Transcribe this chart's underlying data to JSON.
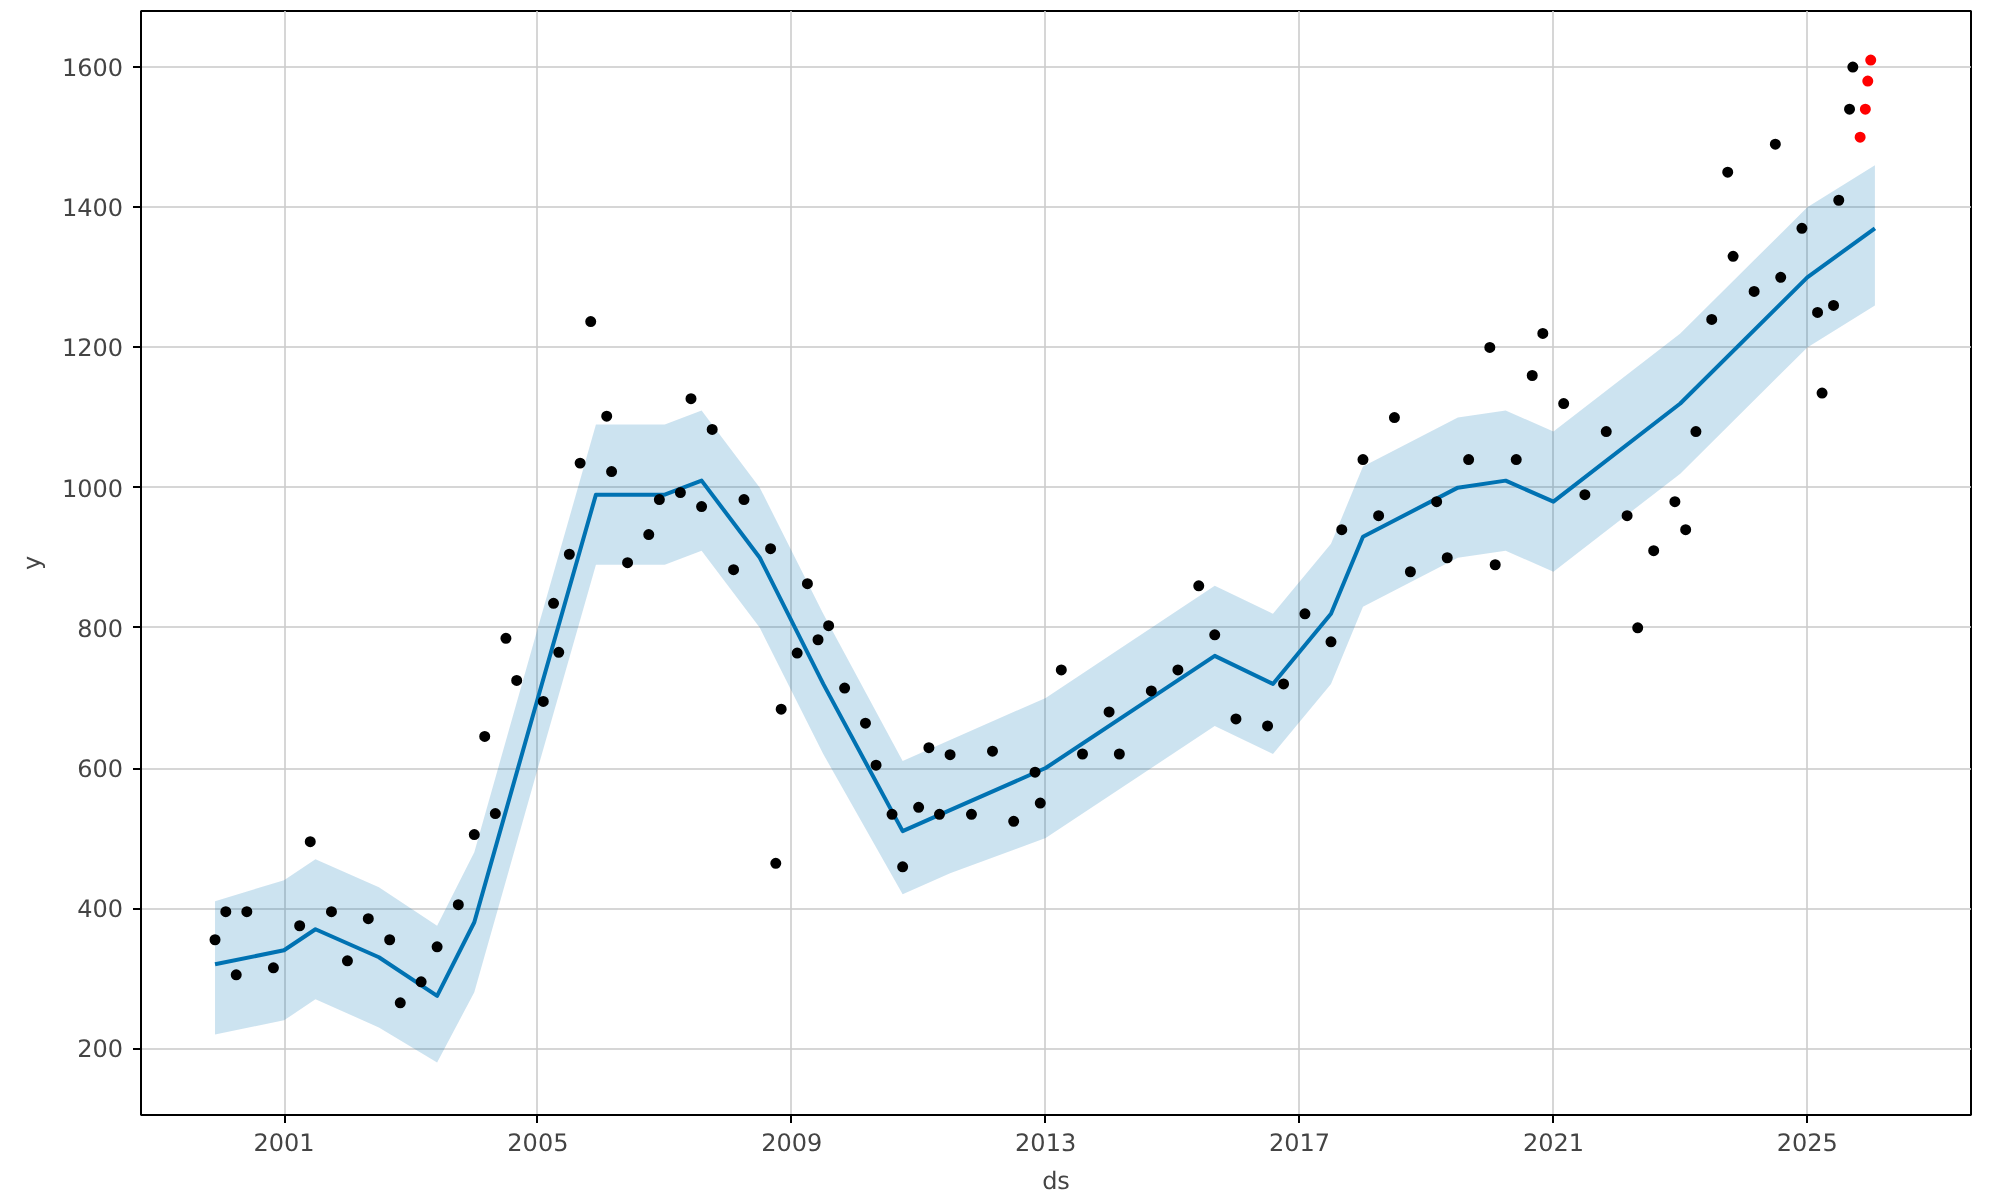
{
  "chart_data": {
    "type": "scatter",
    "xlabel": "ds",
    "ylabel": "y",
    "grid": true,
    "marker": "circle",
    "xlim": [
      "1998-10",
      "2027-08"
    ],
    "ylim": [
      105,
      1680
    ],
    "xticks": [
      "2001",
      "2005",
      "2009",
      "2013",
      "2017",
      "2021",
      "2025"
    ],
    "yticks": [
      200,
      400,
      600,
      800,
      1000,
      1200,
      1400,
      1600
    ],
    "series": [
      {
        "type": "line",
        "color": "#0072b2",
        "marker": "none",
        "line_style": "solid",
        "x": [
          "1999-12",
          "2001-01",
          "2001-07",
          "2002-07",
          "2003-06",
          "2004-01",
          "2005-01",
          "2005-12",
          "2007-01",
          "2007-08",
          "2008-07",
          "2009-07",
          "2010-10",
          "2011-07",
          "2013-01",
          "2015-01",
          "2015-09",
          "2016-08",
          "2017-07",
          "2018-01",
          "2019-07",
          "2020-04",
          "2021-01",
          "2023-01",
          "2025-01",
          "2026-01-25"
        ],
        "values": [
          320,
          340,
          370,
          330,
          275,
          380,
          700,
          990,
          990,
          1010,
          900,
          720,
          510,
          540,
          600,
          720,
          760,
          720,
          820,
          930,
          1000,
          1010,
          980,
          1120,
          1300,
          1370
        ],
        "lower": [
          220,
          240,
          270,
          230,
          180,
          280,
          600,
          890,
          890,
          910,
          800,
          620,
          420,
          450,
          500,
          620,
          660,
          620,
          720,
          830,
          900,
          910,
          880,
          1020,
          1200,
          1260
        ],
        "upper": [
          410,
          440,
          470,
          430,
          375,
          480,
          800,
          1090,
          1090,
          1110,
          1000,
          820,
          610,
          640,
          700,
          820,
          860,
          820,
          920,
          1030,
          1100,
          1110,
          1080,
          1220,
          1400,
          1460
        ]
      },
      {
        "color": "#000000",
        "x": [
          "1999-12",
          "2000-02",
          "2000-04",
          "2000-06",
          "2000-11",
          "2001-04",
          "2001-06",
          "2001-10",
          "2002-01",
          "2002-05",
          "2002-09",
          "2002-11",
          "2003-03",
          "2003-06",
          "2003-10",
          "2004-01",
          "2004-03",
          "2004-05",
          "2004-07",
          "2004-09",
          "2005-02",
          "2005-04",
          "2005-05",
          "2005-07",
          "2005-09",
          "2005-11",
          "2006-02",
          "2006-03",
          "2006-06",
          "2006-10",
          "2006-12",
          "2007-04",
          "2007-06",
          "2007-08",
          "2007-10",
          "2008-02",
          "2008-04",
          "2008-09",
          "2008-10",
          "2008-11",
          "2009-02",
          "2009-04",
          "2009-06",
          "2009-08",
          "2009-11",
          "2010-03",
          "2010-05",
          "2010-08",
          "2010-10",
          "2011-01",
          "2011-03",
          "2011-05",
          "2011-07",
          "2011-11",
          "2012-03",
          "2012-07",
          "2012-11",
          "2012-12",
          "2013-04",
          "2013-08",
          "2014-01",
          "2014-03",
          "2014-09",
          "2015-02",
          "2015-06",
          "2015-09",
          "2016-01",
          "2016-07",
          "2016-10",
          "2017-02",
          "2017-07",
          "2017-09",
          "2018-01",
          "2018-04",
          "2018-07",
          "2018-10",
          "2019-03",
          "2019-05",
          "2019-09",
          "2020-01",
          "2020-02",
          "2020-06",
          "2020-09",
          "2020-11",
          "2021-03",
          "2021-07",
          "2021-11",
          "2022-03",
          "2022-05",
          "2022-08",
          "2022-12",
          "2023-02",
          "2023-04",
          "2023-07",
          "2023-10",
          "2023-11",
          "2024-03",
          "2024-07",
          "2024-08",
          "2024-12",
          "2025-03",
          "2025-03-27",
          "2025-06",
          "2025-07",
          "2025-09",
          "2025-09-20"
        ],
        "values": [
          355,
          395,
          305,
          395,
          315,
          375,
          495,
          395,
          325,
          385,
          355,
          265,
          295,
          345,
          405,
          505,
          645,
          535,
          785,
          725,
          695,
          835,
          765,
          905,
          1035,
          1237,
          1102,
          1023,
          893,
          933,
          983,
          993,
          1127,
          973,
          1083,
          883,
          983,
          913,
          464,
          684,
          764,
          863,
          783,
          803,
          714,
          664,
          604,
          534,
          459,
          544,
          629,
          534,
          619,
          534,
          624,
          524,
          594,
          550,
          740,
          620,
          680,
          620,
          710,
          740,
          860,
          790,
          670,
          660,
          720,
          820,
          780,
          940,
          1040,
          960,
          1100,
          880,
          980,
          900,
          1040,
          1200,
          890,
          1040,
          1160,
          1220,
          1120,
          990,
          1080,
          960,
          800,
          910,
          980,
          940,
          1080,
          1240,
          1450,
          1330,
          1280,
          1490,
          1300,
          1370,
          1250,
          1135,
          1260,
          1410,
          1540,
          1600
        ]
      },
      {
        "color": "#ff0000",
        "x": [
          "2025-11",
          "2025-12-01",
          "2025-12-15",
          "2026-01-01"
        ],
        "values": [
          1500,
          1540,
          1580,
          1610
        ]
      }
    ]
  }
}
